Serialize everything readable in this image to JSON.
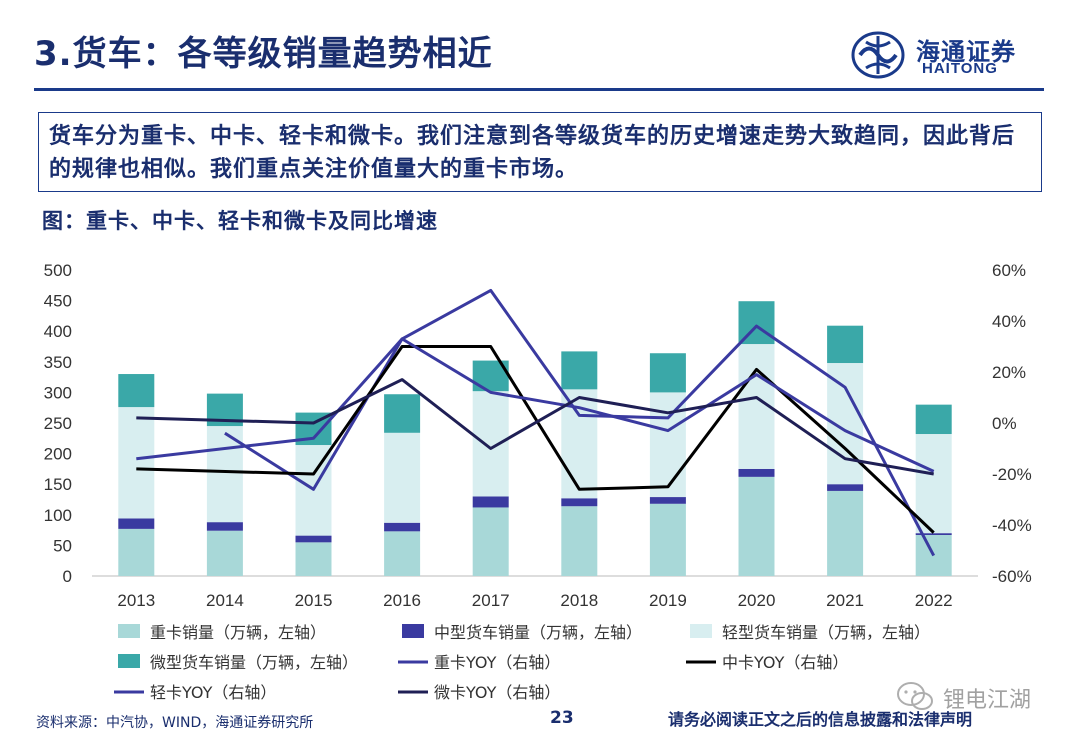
{
  "slide": {
    "title": "3.货车：各等级销量趋势相近",
    "summary": "货车分为重卡、中卡、轻卡和微卡。我们注意到各等级货车的历史增速走势大致趋同，因此背后的规律也相似。我们重点关注价值量大的重卡市场。",
    "figure_caption": "图：重卡、中卡、轻卡和微卡及同比增速",
    "logo": {
      "cn": "海通证券",
      "en": "HAITONG"
    },
    "footer": {
      "source": "资料来源：中汽协，WIND，海通证券研究所",
      "page": "23",
      "disclaimer": "请务必阅读正文之后的信息披露和法律声明"
    },
    "watermark": "锂电江湖",
    "colors": {
      "brand": "#1a3a8a",
      "heavy": "#a8d8d8",
      "medium": "#3a3aa0",
      "light": "#d8eef0",
      "micro": "#3aa8a8",
      "heavy_yoy": "#3a3aa0",
      "medium_yoy": "#000000",
      "light_yoy": "#3a3aa0",
      "micro_yoy": "#1f1f55"
    }
  },
  "chart_data": {
    "type": "bar",
    "stacked": true,
    "categories": [
      "2013",
      "2014",
      "2015",
      "2016",
      "2017",
      "2018",
      "2019",
      "2020",
      "2021",
      "2022"
    ],
    "left_axis": {
      "ylim": [
        0,
        500
      ],
      "ticks": [
        "0",
        "50",
        "100",
        "150",
        "200",
        "250",
        "300",
        "350",
        "400",
        "450",
        "500"
      ]
    },
    "right_axis": {
      "ylim": [
        -60,
        60
      ],
      "ticks": [
        "-60%",
        "-40%",
        "-20%",
        "0%",
        "20%",
        "40%",
        "60%"
      ]
    },
    "bar_series": [
      {
        "name": "重卡销量（万辆，左轴）",
        "color": "#a8d8d8",
        "values": [
          77,
          74,
          55,
          73,
          112,
          114,
          118,
          162,
          139,
          67
        ]
      },
      {
        "name": "中型货车销量（万辆，左轴）",
        "color": "#3a3aa0",
        "values": [
          17,
          14,
          11,
          14,
          18,
          13,
          11,
          13,
          11,
          3
        ]
      },
      {
        "name": "轻型货车销量（万辆，左轴）",
        "color": "#d8eef0",
        "values": [
          182,
          157,
          148,
          147,
          172,
          178,
          171,
          204,
          198,
          162
        ]
      },
      {
        "name": "微型货车销量（万辆，左轴）",
        "color": "#3aa8a8",
        "values": [
          54,
          53,
          53,
          63,
          50,
          62,
          64,
          70,
          61,
          48
        ]
      }
    ],
    "line_series": [
      {
        "name": "重卡YOY（右轴）",
        "color": "#3a3aa0",
        "values": [
          null,
          -4,
          -26,
          33,
          52,
          3,
          2,
          38,
          14,
          -52
        ]
      },
      {
        "name": "中卡YOY（右轴）",
        "color": "#000000",
        "values": [
          -18,
          null,
          -20,
          30,
          30,
          -26,
          -25,
          21,
          -10,
          -43
        ]
      },
      {
        "name": "轻卡YOY（右轴）",
        "color": "#3a3aa0",
        "values": [
          -14,
          null,
          -6,
          33,
          12,
          6,
          -3,
          19,
          -3,
          -19
        ]
      },
      {
        "name": "微卡YOY（右轴）",
        "color": "#1f1f55",
        "values": [
          2,
          null,
          0,
          17,
          -10,
          10,
          4,
          10,
          -14,
          -20
        ]
      }
    ],
    "legend": [
      {
        "label": "重卡销量（万辆，左轴）",
        "kind": "box",
        "color": "#a8d8d8"
      },
      {
        "label": "中型货车销量（万辆，左轴）",
        "kind": "box",
        "color": "#3a3aa0"
      },
      {
        "label": "轻型货车销量（万辆，左轴）",
        "kind": "box",
        "color": "#d8eef0"
      },
      {
        "label": "微型货车销量（万辆，左轴）",
        "kind": "box",
        "color": "#3aa8a8"
      },
      {
        "label": "重卡YOY（右轴）",
        "kind": "line",
        "color": "#3a3aa0"
      },
      {
        "label": "中卡YOY（右轴）",
        "kind": "line",
        "color": "#000000"
      },
      {
        "label": "轻卡YOY（右轴）",
        "kind": "line",
        "color": "#3a3aa0"
      },
      {
        "label": "微卡YOY（右轴）",
        "kind": "line",
        "color": "#1f1f55"
      }
    ],
    "grid": false,
    "legend_position": "bottom"
  }
}
